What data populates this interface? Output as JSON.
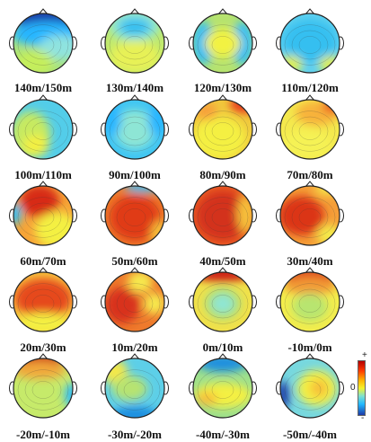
{
  "maps": [
    {
      "label": "140m/150m",
      "bg": "#a8e27a",
      "blobs": [
        {
          "c": "#1e3aa8",
          "x": 45,
          "y": 12,
          "rx": 38,
          "ry": 16
        },
        {
          "c": "#27b6ff",
          "x": 45,
          "y": 30,
          "rx": 40,
          "ry": 14
        },
        {
          "c": "#8fe3df",
          "x": 60,
          "y": 45,
          "rx": 25,
          "ry": 14
        },
        {
          "c": "#c5ee5c",
          "x": 30,
          "y": 62,
          "rx": 22,
          "ry": 14
        }
      ]
    },
    {
      "label": "130m/140m",
      "bg": "#bfe96d",
      "blobs": [
        {
          "c": "#8ee6d5",
          "x": 40,
          "y": 20,
          "rx": 28,
          "ry": 18
        },
        {
          "c": "#34bff0",
          "x": 40,
          "y": 22,
          "rx": 18,
          "ry": 10
        },
        {
          "c": "#e7f157",
          "x": 40,
          "y": 55,
          "rx": 28,
          "ry": 18
        }
      ]
    },
    {
      "label": "120m/130m",
      "bg": "#b6e36f",
      "blobs": [
        {
          "c": "#2fbdf6",
          "x": 18,
          "y": 40,
          "rx": 12,
          "ry": 24
        },
        {
          "c": "#2fbdf6",
          "x": 62,
          "y": 40,
          "rx": 12,
          "ry": 24
        },
        {
          "c": "#f2f242",
          "x": 40,
          "y": 40,
          "rx": 20,
          "ry": 16
        }
      ]
    },
    {
      "label": "110m/120m",
      "bg": "#5ed0ef",
      "blobs": [
        {
          "c": "#34bff0",
          "x": 40,
          "y": 38,
          "rx": 30,
          "ry": 24
        },
        {
          "c": "#ddee55",
          "x": 18,
          "y": 64,
          "rx": 14,
          "ry": 10
        },
        {
          "c": "#ddee55",
          "x": 64,
          "y": 64,
          "rx": 14,
          "ry": 10
        }
      ]
    },
    {
      "label": "100m/110m",
      "bg": "#53cde9",
      "blobs": [
        {
          "c": "#c7ea60",
          "x": 26,
          "y": 46,
          "rx": 22,
          "ry": 26
        },
        {
          "c": "#f3f042",
          "x": 32,
          "y": 58,
          "rx": 14,
          "ry": 12
        }
      ]
    },
    {
      "label": "90m/100m",
      "bg": "#41c6f2",
      "blobs": [
        {
          "c": "#8ee6d5",
          "x": 40,
          "y": 40,
          "rx": 22,
          "ry": 22
        },
        {
          "c": "#27b6ff",
          "x": 15,
          "y": 30,
          "rx": 10,
          "ry": 18
        },
        {
          "c": "#27b6ff",
          "x": 65,
          "y": 30,
          "rx": 10,
          "ry": 18
        }
      ]
    },
    {
      "label": "80m/90m",
      "bg": "#f0c93d",
      "blobs": [
        {
          "c": "#f4f043",
          "x": 36,
          "y": 50,
          "rx": 30,
          "ry": 24
        },
        {
          "c": "#e83a1a",
          "x": 64,
          "y": 12,
          "rx": 16,
          "ry": 10
        },
        {
          "c": "#f7a03a",
          "x": 22,
          "y": 20,
          "rx": 12,
          "ry": 10
        }
      ]
    },
    {
      "label": "70m/80m",
      "bg": "#f4e94d",
      "blobs": [
        {
          "c": "#f7b23a",
          "x": 48,
          "y": 22,
          "rx": 24,
          "ry": 14
        },
        {
          "c": "#e9541f",
          "x": 66,
          "y": 14,
          "rx": 12,
          "ry": 8
        },
        {
          "c": "#f5f254",
          "x": 36,
          "y": 56,
          "rx": 28,
          "ry": 16
        }
      ]
    },
    {
      "label": "60m/70m",
      "bg": "#f6a437",
      "blobs": [
        {
          "c": "#d72b14",
          "x": 36,
          "y": 24,
          "rx": 22,
          "ry": 18
        },
        {
          "c": "#f4f043",
          "x": 55,
          "y": 56,
          "rx": 24,
          "ry": 20
        },
        {
          "c": "#2fbdf6",
          "x": 8,
          "y": 38,
          "rx": 8,
          "ry": 12
        }
      ]
    },
    {
      "label": "50m/60m",
      "bg": "#ee7b2a",
      "blobs": [
        {
          "c": "#e03a17",
          "x": 40,
          "y": 42,
          "rx": 28,
          "ry": 26
        },
        {
          "c": "#2fbdf6",
          "x": 50,
          "y": 8,
          "rx": 22,
          "ry": 6
        },
        {
          "c": "#f6c03b",
          "x": 68,
          "y": 60,
          "rx": 10,
          "ry": 14
        }
      ]
    },
    {
      "label": "40m/50m",
      "bg": "#eb5d22",
      "blobs": [
        {
          "c": "#d3301a",
          "x": 40,
          "y": 40,
          "rx": 30,
          "ry": 28
        },
        {
          "c": "#f6c03b",
          "x": 66,
          "y": 38,
          "rx": 10,
          "ry": 22
        }
      ]
    },
    {
      "label": "30m/40m",
      "bg": "#f59e38",
      "blobs": [
        {
          "c": "#db3419",
          "x": 30,
          "y": 40,
          "rx": 26,
          "ry": 22
        },
        {
          "c": "#f4e84a",
          "x": 62,
          "y": 62,
          "rx": 14,
          "ry": 12
        },
        {
          "c": "#f4e84a",
          "x": 60,
          "y": 10,
          "rx": 14,
          "ry": 7
        }
      ]
    },
    {
      "label": "20m/30m",
      "bg": "#f7c33d",
      "blobs": [
        {
          "c": "#e64a1d",
          "x": 40,
          "y": 36,
          "rx": 32,
          "ry": 22
        },
        {
          "c": "#f4f043",
          "x": 40,
          "y": 64,
          "rx": 30,
          "ry": 12
        }
      ]
    },
    {
      "label": "10m/20m",
      "bg": "#ee7a2c",
      "blobs": [
        {
          "c": "#d8331a",
          "x": 26,
          "y": 44,
          "rx": 20,
          "ry": 20
        },
        {
          "c": "#f6e84e",
          "x": 46,
          "y": 18,
          "rx": 14,
          "ry": 12
        },
        {
          "c": "#f6e84e",
          "x": 62,
          "y": 42,
          "rx": 12,
          "ry": 12
        }
      ]
    },
    {
      "label": "0m/10m",
      "bg": "#f0e14a",
      "blobs": [
        {
          "c": "#cf2416",
          "x": 40,
          "y": 8,
          "rx": 32,
          "ry": 10
        },
        {
          "c": "#a9e07d",
          "x": 40,
          "y": 42,
          "rx": 20,
          "ry": 18
        },
        {
          "c": "#8ee6d5",
          "x": 40,
          "y": 42,
          "rx": 12,
          "ry": 10
        }
      ]
    },
    {
      "label": "-10m/0m",
      "bg": "#f3ed4c",
      "blobs": [
        {
          "c": "#dc3a1a",
          "x": 40,
          "y": 10,
          "rx": 30,
          "ry": 10
        },
        {
          "c": "#f29a36",
          "x": 40,
          "y": 22,
          "rx": 30,
          "ry": 10
        },
        {
          "c": "#b8e56f",
          "x": 40,
          "y": 46,
          "rx": 20,
          "ry": 16
        }
      ]
    },
    {
      "label": "-20m/-10m",
      "bg": "#c6ea6a",
      "blobs": [
        {
          "c": "#c92013",
          "x": 36,
          "y": 8,
          "rx": 26,
          "ry": 9
        },
        {
          "c": "#f1a83a",
          "x": 36,
          "y": 20,
          "rx": 30,
          "ry": 10
        },
        {
          "c": "#2fbdf6",
          "x": 72,
          "y": 48,
          "rx": 8,
          "ry": 14
        }
      ]
    },
    {
      "label": "-30m/-20m",
      "bg": "#5dcfe8",
      "blobs": [
        {
          "c": "#f4e84a",
          "x": 18,
          "y": 22,
          "rx": 14,
          "ry": 14
        },
        {
          "c": "#b7e371",
          "x": 34,
          "y": 40,
          "rx": 20,
          "ry": 14
        },
        {
          "c": "#1f8fe0",
          "x": 40,
          "y": 70,
          "rx": 26,
          "ry": 10
        }
      ]
    },
    {
      "label": "-40m/-30m",
      "bg": "#9ee08c",
      "blobs": [
        {
          "c": "#f4f043",
          "x": 40,
          "y": 48,
          "rx": 32,
          "ry": 14
        },
        {
          "c": "#1f8fe0",
          "x": 40,
          "y": 12,
          "rx": 28,
          "ry": 10
        },
        {
          "c": "#f6c03b",
          "x": 22,
          "y": 52,
          "rx": 12,
          "ry": 8
        }
      ]
    },
    {
      "label": "-50m/-40m",
      "bg": "#77d8df",
      "blobs": [
        {
          "c": "#1e3aa8",
          "x": 10,
          "y": 48,
          "rx": 7,
          "ry": 16
        },
        {
          "c": "#f4f043",
          "x": 48,
          "y": 40,
          "rx": 22,
          "ry": 20
        },
        {
          "c": "#f6c03b",
          "x": 50,
          "y": 40,
          "rx": 10,
          "ry": 10
        }
      ]
    }
  ],
  "colorbar": {
    "top": "+",
    "mid": "0",
    "bottom": "-"
  }
}
